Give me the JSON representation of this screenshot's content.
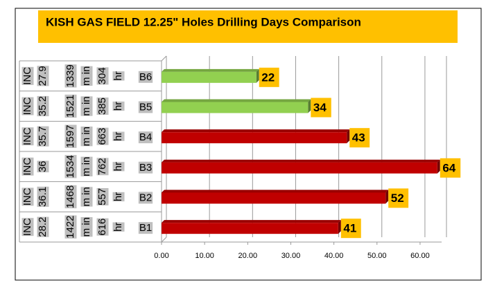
{
  "chart_data": {
    "type": "bar3d",
    "title": "KISH GAS FIELD 12.25\" Holes Drilling Days Comparison",
    "categories": [
      "B1",
      "B2",
      "B3",
      "B4",
      "B5",
      "B6"
    ],
    "values": [
      41,
      52,
      64,
      43,
      34,
      22
    ],
    "colors": [
      "#c00000",
      "#c00000",
      "#c00000",
      "#c00000",
      "#92d050",
      "#92d050"
    ],
    "row_labels": [
      {
        "inc": [
          "INC",
          "28.2"
        ],
        "run": [
          "1422",
          "m in",
          "616",
          "hr"
        ]
      },
      {
        "inc": [
          "INC",
          "36.1"
        ],
        "run": [
          "1468",
          "m in",
          "557",
          "hr"
        ]
      },
      {
        "inc": [
          "INC",
          "36"
        ],
        "run": [
          "1534",
          "m in",
          "762",
          "hr"
        ]
      },
      {
        "inc": [
          "INC",
          "35.7"
        ],
        "run": [
          "1597",
          "m in",
          "663",
          "hr"
        ]
      },
      {
        "inc": [
          "INC",
          "35.2"
        ],
        "run": [
          "1521",
          "m in",
          "385",
          "hr"
        ]
      },
      {
        "inc": [
          "INC",
          "27.9"
        ],
        "run": [
          "1339",
          "m in",
          "304",
          "hr"
        ]
      }
    ],
    "xlim": [
      0,
      65
    ],
    "xticks": [
      {
        "value": 0,
        "label": "0.00"
      },
      {
        "value": 10,
        "label": "10.00"
      },
      {
        "value": 20,
        "label": "20.00"
      },
      {
        "value": 30,
        "label": "30.00"
      },
      {
        "value": 40,
        "label": "40.00"
      },
      {
        "value": 50,
        "label": "50.00"
      },
      {
        "value": 60,
        "label": "60.00"
      }
    ],
    "grid": true
  }
}
